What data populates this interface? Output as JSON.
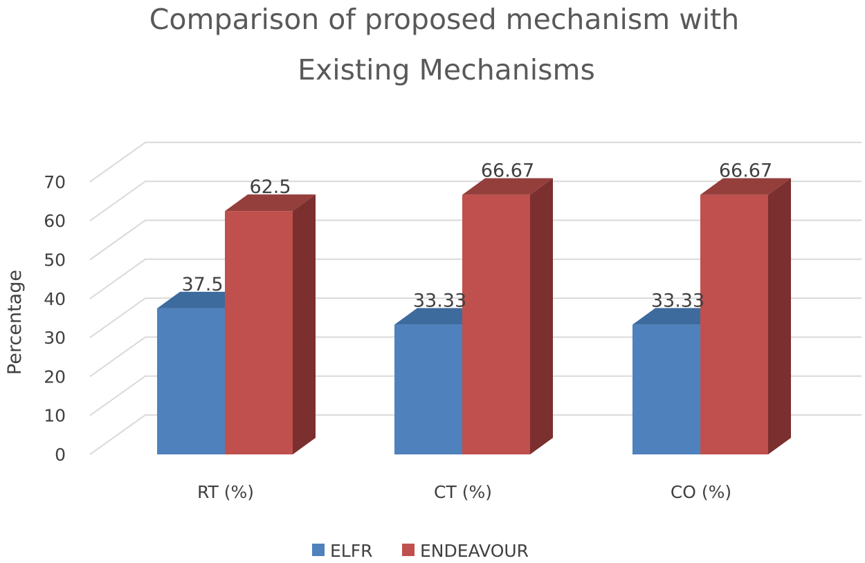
{
  "chart_data": {
    "type": "bar",
    "title": [
      "Comparison of proposed mechanism with",
      "Existing Mechanisms"
    ],
    "ylabel": "Percentage",
    "xlabel": "",
    "categories": [
      "RT (%)",
      "CT (%)",
      "CO (%)"
    ],
    "ylim": [
      0,
      70
    ],
    "yticks": [
      0,
      10,
      20,
      30,
      40,
      50,
      60,
      70
    ],
    "grid": true,
    "style": "3d-clustered-column",
    "legend_position": "bottom",
    "series": [
      {
        "name": "ELFR",
        "values": [
          37.5,
          33.33,
          33.33
        ],
        "labels": [
          "37.5",
          "33.33",
          "33.33"
        ],
        "color": "#4f81bd",
        "top_color": "#3e6b9e",
        "side_color": "#385d8a"
      },
      {
        "name": "ENDEAVOUR",
        "values": [
          62.5,
          66.67,
          66.67
        ],
        "labels": [
          "62.5",
          "66.67",
          "66.67"
        ],
        "color": "#c0504d",
        "top_color": "#943f3c",
        "side_color": "#7b2f2e"
      }
    ]
  }
}
